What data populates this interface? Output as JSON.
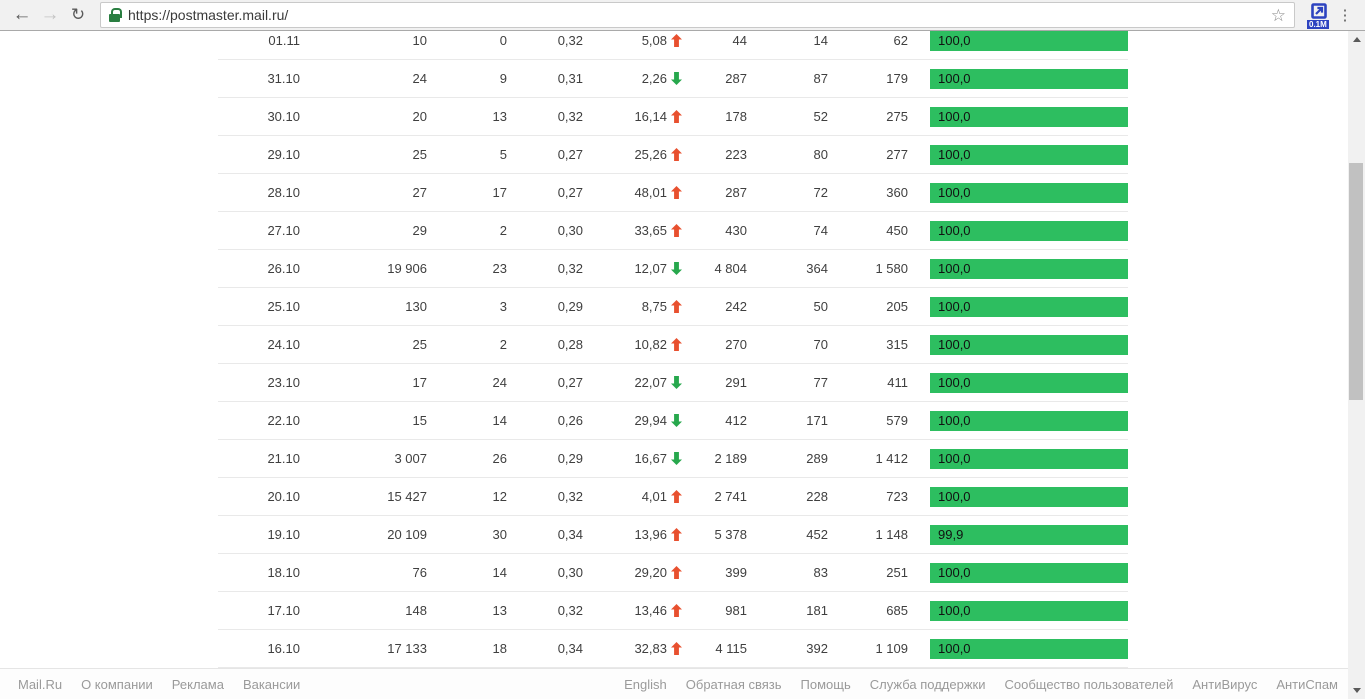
{
  "browser": {
    "url": "https://postmaster.mail.ru/",
    "extension_badge": "0.1M",
    "icons": {
      "back": "←",
      "forward": "→",
      "reload": "↻",
      "star": "☆",
      "menu": "⋮"
    }
  },
  "colors": {
    "bar_green": "#2dbe60",
    "arrow_up": "#e8502f",
    "arrow_down": "#27a84d"
  },
  "table": {
    "rows": [
      {
        "date": "01.11",
        "v1": "10",
        "v2": "0",
        "v3": "0,32",
        "delta": "5,08",
        "trend": "up",
        "v4": "44",
        "v5": "14",
        "v6": "62",
        "bar": "100,0",
        "pct": 100
      },
      {
        "date": "31.10",
        "v1": "24",
        "v2": "9",
        "v3": "0,31",
        "delta": "2,26",
        "trend": "down",
        "v4": "287",
        "v5": "87",
        "v6": "179",
        "bar": "100,0",
        "pct": 100
      },
      {
        "date": "30.10",
        "v1": "20",
        "v2": "13",
        "v3": "0,32",
        "delta": "16,14",
        "trend": "up",
        "v4": "178",
        "v5": "52",
        "v6": "275",
        "bar": "100,0",
        "pct": 100
      },
      {
        "date": "29.10",
        "v1": "25",
        "v2": "5",
        "v3": "0,27",
        "delta": "25,26",
        "trend": "up",
        "v4": "223",
        "v5": "80",
        "v6": "277",
        "bar": "100,0",
        "pct": 100
      },
      {
        "date": "28.10",
        "v1": "27",
        "v2": "17",
        "v3": "0,27",
        "delta": "48,01",
        "trend": "up",
        "v4": "287",
        "v5": "72",
        "v6": "360",
        "bar": "100,0",
        "pct": 100
      },
      {
        "date": "27.10",
        "v1": "29",
        "v2": "2",
        "v3": "0,30",
        "delta": "33,65",
        "trend": "up",
        "v4": "430",
        "v5": "74",
        "v6": "450",
        "bar": "100,0",
        "pct": 100
      },
      {
        "date": "26.10",
        "v1": "19 906",
        "v2": "23",
        "v3": "0,32",
        "delta": "12,07",
        "trend": "down",
        "v4": "4 804",
        "v5": "364",
        "v6": "1 580",
        "bar": "100,0",
        "pct": 100
      },
      {
        "date": "25.10",
        "v1": "130",
        "v2": "3",
        "v3": "0,29",
        "delta": "8,75",
        "trend": "up",
        "v4": "242",
        "v5": "50",
        "v6": "205",
        "bar": "100,0",
        "pct": 100
      },
      {
        "date": "24.10",
        "v1": "25",
        "v2": "2",
        "v3": "0,28",
        "delta": "10,82",
        "trend": "up",
        "v4": "270",
        "v5": "70",
        "v6": "315",
        "bar": "100,0",
        "pct": 100
      },
      {
        "date": "23.10",
        "v1": "17",
        "v2": "24",
        "v3": "0,27",
        "delta": "22,07",
        "trend": "down",
        "v4": "291",
        "v5": "77",
        "v6": "411",
        "bar": "100,0",
        "pct": 100
      },
      {
        "date": "22.10",
        "v1": "15",
        "v2": "14",
        "v3": "0,26",
        "delta": "29,94",
        "trend": "down",
        "v4": "412",
        "v5": "171",
        "v6": "579",
        "bar": "100,0",
        "pct": 100
      },
      {
        "date": "21.10",
        "v1": "3 007",
        "v2": "26",
        "v3": "0,29",
        "delta": "16,67",
        "trend": "down",
        "v4": "2 189",
        "v5": "289",
        "v6": "1 412",
        "bar": "100,0",
        "pct": 100
      },
      {
        "date": "20.10",
        "v1": "15 427",
        "v2": "12",
        "v3": "0,32",
        "delta": "4,01",
        "trend": "up",
        "v4": "2 741",
        "v5": "228",
        "v6": "723",
        "bar": "100,0",
        "pct": 100
      },
      {
        "date": "19.10",
        "v1": "20 109",
        "v2": "30",
        "v3": "0,34",
        "delta": "13,96",
        "trend": "up",
        "v4": "5 378",
        "v5": "452",
        "v6": "1 148",
        "bar": "99,9",
        "pct": 99.9
      },
      {
        "date": "18.10",
        "v1": "76",
        "v2": "14",
        "v3": "0,30",
        "delta": "29,20",
        "trend": "up",
        "v4": "399",
        "v5": "83",
        "v6": "251",
        "bar": "100,0",
        "pct": 100
      },
      {
        "date": "17.10",
        "v1": "148",
        "v2": "13",
        "v3": "0,32",
        "delta": "13,46",
        "trend": "up",
        "v4": "981",
        "v5": "181",
        "v6": "685",
        "bar": "100,0",
        "pct": 100
      },
      {
        "date": "16.10",
        "v1": "17 133",
        "v2": "18",
        "v3": "0,34",
        "delta": "32,83",
        "trend": "up",
        "v4": "4 115",
        "v5": "392",
        "v6": "1 109",
        "bar": "100,0",
        "pct": 100
      }
    ]
  },
  "footer": {
    "left_links": [
      "Mail.Ru",
      "О компании",
      "Реклама",
      "Вакансии"
    ],
    "right_links": [
      "English",
      "Обратная связь",
      "Помощь",
      "Служба поддержки",
      "Сообщество пользователей",
      "АнтиВирус",
      "АнтиСпам"
    ]
  }
}
